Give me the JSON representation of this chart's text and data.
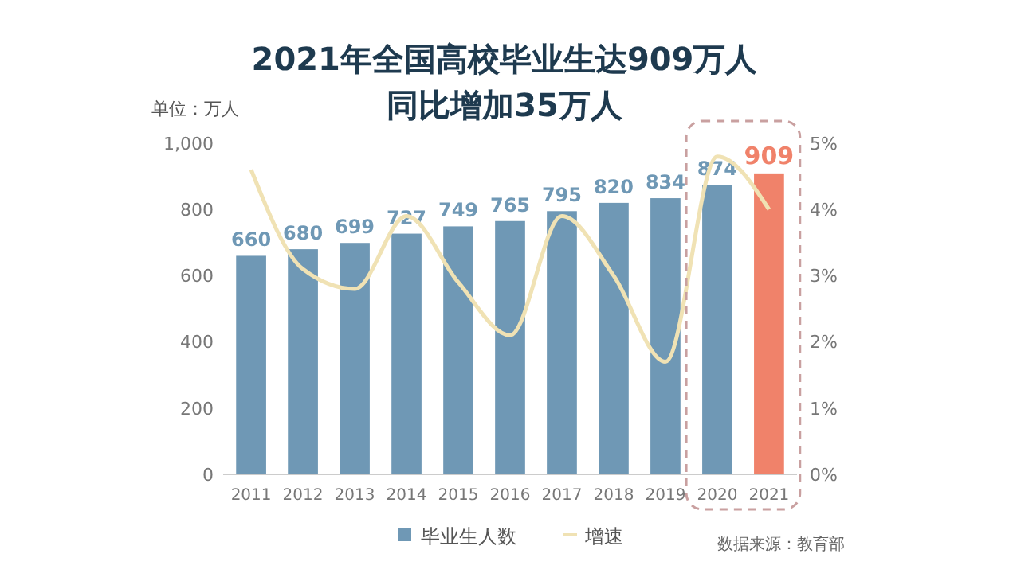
{
  "chart_data": {
    "type": "bar",
    "title": "2021年全国高校毕业生达909万人",
    "subtitle": "同比增加35万人",
    "ylabel": "单位：万人",
    "categories": [
      "2011",
      "2012",
      "2013",
      "2014",
      "2015",
      "2016",
      "2017",
      "2018",
      "2019",
      "2020",
      "2021"
    ],
    "series": [
      {
        "name": "毕业生人数",
        "color": "#6f98b5",
        "value_labels": [
          "660",
          "680",
          "699",
          "727",
          "749",
          "765",
          "795",
          "820",
          "834",
          "874",
          "909"
        ],
        "colors": [
          "#6f98b5",
          "#6f98b5",
          "#6f98b5",
          "#6f98b5",
          "#6f98b5",
          "#6f98b5",
          "#6f98b5",
          "#6f98b5",
          "#6f98b5",
          "#6f98b5",
          "#f0826a"
        ],
        "values": [
          660,
          680,
          699,
          727,
          749,
          765,
          795,
          820,
          834,
          874,
          909
        ]
      },
      {
        "name": "增速",
        "type": "line",
        "axis": "y2",
        "color": "#f0e2b4",
        "values": [
          4.6,
          3.1,
          2.8,
          3.9,
          2.9,
          2.1,
          3.9,
          3.0,
          1.7,
          4.8,
          4.0
        ]
      }
    ],
    "ylim": [
      0,
      1000
    ],
    "yticks": [
      0,
      200,
      400,
      600,
      800,
      {
        "value": 1000,
        "label": "1,000"
      }
    ],
    "y2lim": [
      0,
      5
    ],
    "y2ticks": [
      {
        "value": 0,
        "label": "0%"
      },
      {
        "value": 1,
        "label": "1%"
      },
      {
        "value": 2,
        "label": "2%"
      },
      {
        "value": 3,
        "label": "3%"
      },
      {
        "value": 4,
        "label": "4%"
      },
      {
        "value": 5,
        "label": "5%"
      }
    ],
    "grid": false,
    "legend": "bottom",
    "marker": "none",
    "line_style": "solid",
    "annotations": [
      "数据来源：教育部"
    ]
  }
}
